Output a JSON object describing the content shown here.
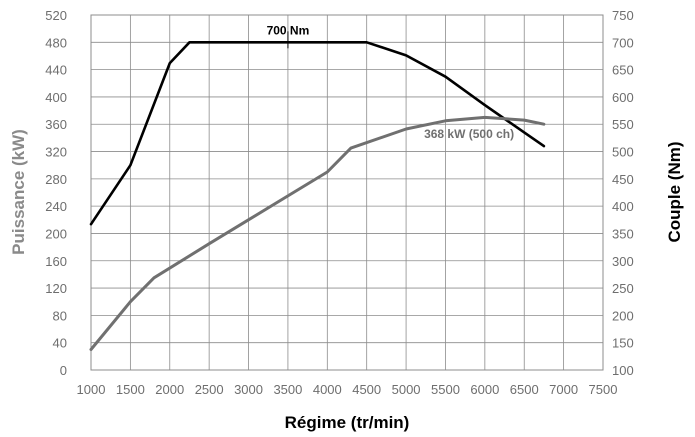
{
  "chart_data": {
    "type": "line",
    "xlabel": "Régime (tr/min)",
    "ylabel_left": "Puissance (kW)",
    "ylabel_right": "Couple (Nm)",
    "x_ticks": [
      1000,
      1500,
      2000,
      2500,
      3000,
      3500,
      4000,
      4500,
      5000,
      5500,
      6000,
      6500,
      7000,
      7500
    ],
    "y_left_ticks": [
      0,
      40,
      80,
      120,
      160,
      200,
      240,
      280,
      320,
      360,
      400,
      440,
      480,
      520
    ],
    "y_right_ticks": [
      100,
      150,
      200,
      250,
      300,
      350,
      400,
      450,
      500,
      550,
      600,
      650,
      700,
      750
    ],
    "xlim": [
      1000,
      7500
    ],
    "ylim_left": [
      0,
      520
    ],
    "ylim_right": [
      100,
      750
    ],
    "grid": true,
    "series": [
      {
        "axis": "right",
        "color": "#000000",
        "points": [
          [
            1000,
            367
          ],
          [
            1500,
            475
          ],
          [
            2000,
            662
          ],
          [
            2250,
            700
          ],
          [
            3000,
            700
          ],
          [
            4000,
            700
          ],
          [
            4500,
            700
          ],
          [
            5000,
            676
          ],
          [
            5500,
            637
          ],
          [
            6000,
            585
          ],
          [
            6500,
            535
          ],
          [
            6750,
            510
          ]
        ]
      },
      {
        "axis": "left",
        "color": "#707070",
        "points": [
          [
            1000,
            30
          ],
          [
            1500,
            100
          ],
          [
            1800,
            135
          ],
          [
            2500,
            185
          ],
          [
            3000,
            220
          ],
          [
            3500,
            255
          ],
          [
            4000,
            290
          ],
          [
            4300,
            325
          ],
          [
            5000,
            353
          ],
          [
            5500,
            365
          ],
          [
            6000,
            370
          ],
          [
            6500,
            366
          ],
          [
            6750,
            360
          ]
        ]
      }
    ],
    "annotations": [
      {
        "text": "700 Nm",
        "x": 3500,
        "y": 700,
        "axis": "right",
        "color": "#000000"
      },
      {
        "text": "368 kW (500 ch)",
        "x": 5800,
        "y": 340,
        "axis": "left",
        "color": "#707070"
      }
    ]
  }
}
